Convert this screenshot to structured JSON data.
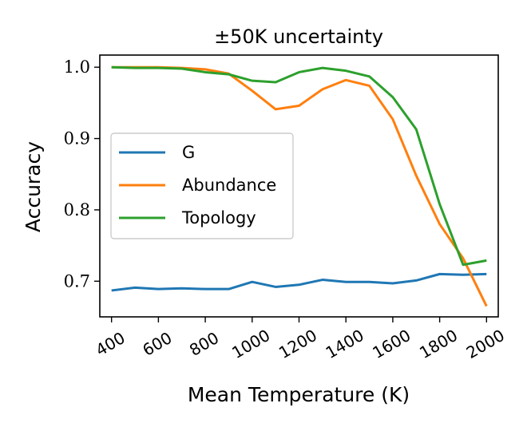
{
  "chart_data": {
    "type": "line",
    "title": "±50K uncertainty",
    "xlabel": "Mean Temperature (K)",
    "ylabel": "Accuracy",
    "xlim": [
      350,
      2050
    ],
    "ylim": [
      0.65,
      1.017
    ],
    "x_ticks": [
      400,
      600,
      800,
      1000,
      1200,
      1400,
      1600,
      1800,
      2000
    ],
    "y_ticks": [
      0.7,
      0.8,
      0.9,
      1.0
    ],
    "y_tick_labels": [
      "0.7",
      "0.8",
      "0.9",
      "1.0"
    ],
    "grid": false,
    "legend_position": "center-left",
    "x": [
      400,
      500,
      600,
      700,
      800,
      900,
      1000,
      1100,
      1200,
      1300,
      1400,
      1500,
      1600,
      1700,
      1800,
      1900,
      2000
    ],
    "series": [
      {
        "name": "G",
        "color": "#1f77b4",
        "values": [
          0.687,
          0.691,
          0.689,
          0.69,
          0.689,
          0.689,
          0.699,
          0.692,
          0.695,
          0.702,
          0.699,
          0.699,
          0.697,
          0.701,
          0.71,
          0.709,
          0.71
        ]
      },
      {
        "name": "Abundance",
        "color": "#ff7f0e",
        "values": [
          1.0,
          1.0,
          1.0,
          0.999,
          0.997,
          0.991,
          0.967,
          0.941,
          0.946,
          0.969,
          0.982,
          0.974,
          0.927,
          0.848,
          0.78,
          0.732,
          0.665
        ]
      },
      {
        "name": "Topology",
        "color": "#2ca02c",
        "values": [
          1.0,
          0.999,
          0.999,
          0.998,
          0.993,
          0.99,
          0.981,
          0.979,
          0.993,
          0.999,
          0.995,
          0.987,
          0.958,
          0.913,
          0.808,
          0.723,
          0.729
        ]
      }
    ]
  }
}
